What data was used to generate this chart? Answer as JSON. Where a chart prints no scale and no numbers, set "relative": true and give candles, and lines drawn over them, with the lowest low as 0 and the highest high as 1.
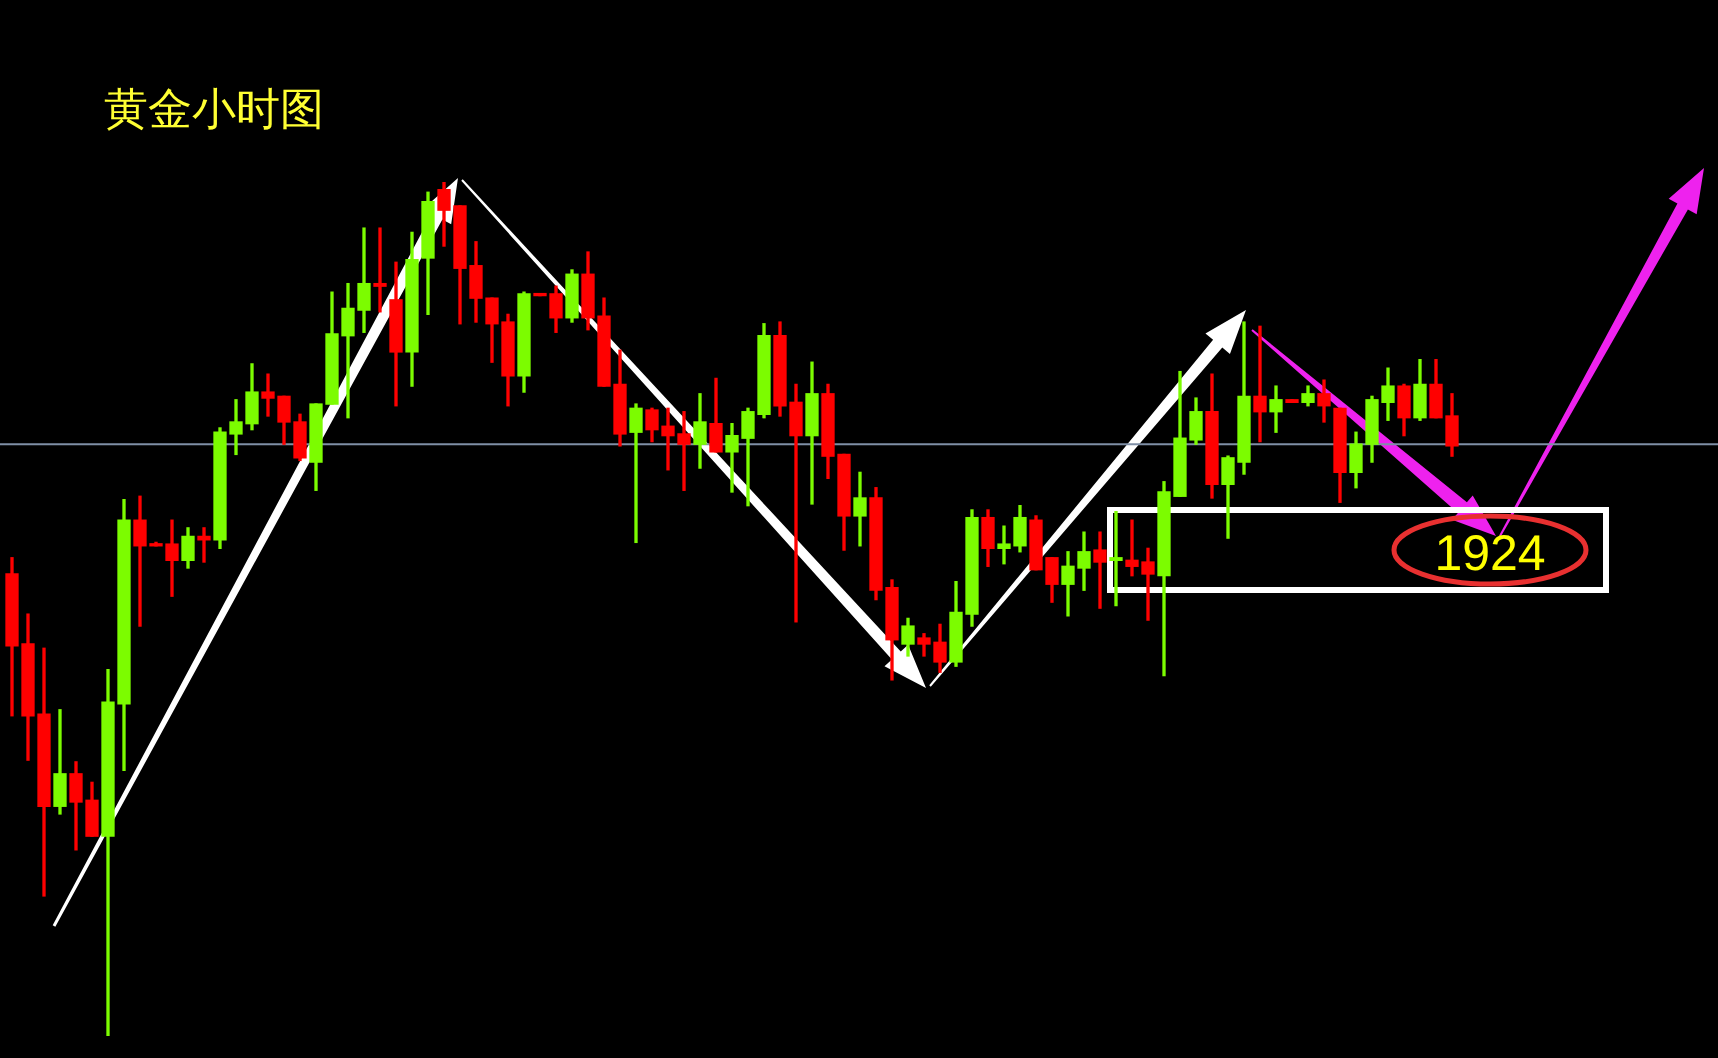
{
  "chart_data": {
    "type": "candlestick",
    "title": "黄金小时图",
    "relative": true,
    "categories": [
      null,
      null,
      null,
      null,
      null,
      null,
      null,
      null,
      null,
      null,
      null,
      null,
      null,
      null,
      null,
      null,
      null,
      null,
      null,
      null,
      null,
      null,
      null,
      null,
      null,
      null,
      null,
      null,
      null,
      null,
      null,
      null,
      null,
      null,
      null,
      null,
      null,
      null,
      null,
      null,
      null,
      null,
      null,
      null,
      null,
      null,
      null,
      null,
      null,
      null,
      null,
      null,
      null,
      null,
      null,
      null,
      null,
      null,
      null,
      null,
      null,
      null,
      null,
      null,
      null,
      null,
      null,
      null,
      null,
      null,
      null,
      null,
      null,
      null,
      null,
      null,
      null,
      null,
      null,
      null,
      null,
      null,
      null,
      null,
      null,
      null,
      null,
      null,
      null,
      null,
      null
    ],
    "ohlc": [
      [
        0.541,
        0.56,
        0.375,
        0.457
      ],
      [
        0.459,
        0.494,
        0.323,
        0.375
      ],
      [
        0.377,
        0.454,
        0.164,
        0.269
      ],
      [
        0.269,
        0.382,
        0.26,
        0.307
      ],
      [
        0.307,
        0.321,
        0.218,
        0.274
      ],
      [
        0.276,
        0.297,
        0.234,
        0.234
      ],
      [
        0.234,
        0.429,
        0,
        0.391
      ],
      [
        0.389,
        0.628,
        0.311,
        0.604
      ],
      [
        0.604,
        0.632,
        0.48,
        0.574
      ],
      [
        0.576,
        0.578,
        0.574,
        0.574
      ],
      [
        0.576,
        0.604,
        0.515,
        0.557
      ],
      [
        0.557,
        0.595,
        0.548,
        0.585
      ],
      [
        0.585,
        0.595,
        0.555,
        0.581
      ],
      [
        0.581,
        0.712,
        0.571,
        0.707
      ],
      [
        0.705,
        0.745,
        0.681,
        0.719
      ],
      [
        0.717,
        0.787,
        0.71,
        0.754
      ],
      [
        0.754,
        0.775,
        0.726,
        0.747
      ],
      [
        0.749,
        0.749,
        0.693,
        0.719
      ],
      [
        0.719,
        0.728,
        0.674,
        0.677
      ],
      [
        0.672,
        0.74,
        0.639,
        0.74
      ],
      [
        0.74,
        0.871,
        0.74,
        0.822
      ],
      [
        0.82,
        0.881,
        0.724,
        0.852
      ],
      [
        0.85,
        0.946,
        0.824,
        0.881
      ],
      [
        0.881,
        0.946,
        0.848,
        0.878
      ],
      [
        0.862,
        0.906,
        0.738,
        0.801
      ],
      [
        0.801,
        0.941,
        0.761,
        0.909
      ],
      [
        0.911,
        0.988,
        0.845,
        0.977
      ],
      [
        0.991,
        1,
        0.925,
        0.967
      ],
      [
        0.972,
        0.972,
        0.834,
        0.899
      ],
      [
        0.902,
        0.93,
        0.836,
        0.864
      ],
      [
        0.864,
        0.864,
        0.789,
        0.834
      ],
      [
        0.836,
        0.845,
        0.738,
        0.773
      ],
      [
        0.773,
        0.871,
        0.754,
        0.869
      ],
      [
        0.869,
        0.869,
        0.867,
        0.867
      ],
      [
        0.869,
        0.878,
        0.824,
        0.841
      ],
      [
        0.841,
        0.897,
        0.836,
        0.892
      ],
      [
        0.892,
        0.918,
        0.827,
        0.841
      ],
      [
        0.843,
        0.864,
        0.761,
        0.761
      ],
      [
        0.763,
        0.803,
        0.691,
        0.705
      ],
      [
        0.707,
        0.74,
        0.578,
        0.735
      ],
      [
        0.733,
        0.735,
        0.696,
        0.71
      ],
      [
        0.714,
        0.735,
        0.663,
        0.703
      ],
      [
        0.705,
        0.731,
        0.639,
        0.693
      ],
      [
        0.693,
        0.752,
        0.665,
        0.719
      ],
      [
        0.717,
        0.77,
        0.684,
        0.684
      ],
      [
        0.684,
        0.717,
        0.637,
        0.703
      ],
      [
        0.7,
        0.735,
        0.621,
        0.731
      ],
      [
        0.728,
        0.834,
        0.724,
        0.82
      ],
      [
        0.82,
        0.836,
        0.726,
        0.738
      ],
      [
        0.742,
        0.763,
        0.485,
        0.703
      ],
      [
        0.703,
        0.789,
        0.623,
        0.752
      ],
      [
        0.752,
        0.763,
        0.653,
        0.679
      ],
      [
        0.681,
        0.681,
        0.569,
        0.609
      ],
      [
        0.609,
        0.66,
        0.574,
        0.63
      ],
      [
        0.63,
        0.642,
        0.511,
        0.522
      ],
      [
        0.525,
        0.534,
        0.417,
        0.464
      ],
      [
        0.459,
        0.489,
        0.445,
        0.48
      ],
      [
        0.466,
        0.471,
        0.445,
        0.459
      ],
      [
        0.461,
        0.482,
        0.426,
        0.438
      ],
      [
        0.438,
        0.532,
        0.433,
        0.496
      ],
      [
        0.494,
        0.616,
        0.48,
        0.607
      ],
      [
        0.607,
        0.616,
        0.55,
        0.571
      ],
      [
        0.571,
        0.597,
        0.553,
        0.576
      ],
      [
        0.574,
        0.621,
        0.567,
        0.607
      ],
      [
        0.604,
        0.609,
        0.546,
        0.546
      ],
      [
        0.56,
        0.56,
        0.508,
        0.529
      ],
      [
        0.529,
        0.567,
        0.492,
        0.55
      ],
      [
        0.548,
        0.59,
        0.522,
        0.567
      ],
      [
        0.569,
        0.59,
        0.501,
        0.555
      ],
      [
        0.557,
        0.614,
        0.504,
        0.56
      ],
      [
        0.557,
        0.604,
        0.539,
        0.55
      ],
      [
        0.555,
        0.571,
        0.487,
        0.541
      ],
      [
        0.539,
        0.649,
        0.422,
        0.637
      ],
      [
        0.632,
        0.778,
        0.632,
        0.7
      ],
      [
        0.698,
        0.747,
        0.693,
        0.731
      ],
      [
        0.731,
        0.775,
        0.63,
        0.646
      ],
      [
        0.646,
        0.679,
        0.583,
        0.677
      ],
      [
        0.672,
        0.836,
        0.658,
        0.749
      ],
      [
        0.749,
        0.831,
        0.696,
        0.731
      ],
      [
        0.731,
        0.761,
        0.707,
        0.745
      ],
      [
        0.745,
        0.745,
        0.742,
        0.742
      ],
      [
        0.742,
        0.761,
        0.738,
        0.752
      ],
      [
        0.752,
        0.768,
        0.719,
        0.738
      ],
      [
        0.735,
        0.735,
        0.625,
        0.66
      ],
      [
        0.66,
        0.707,
        0.642,
        0.693
      ],
      [
        0.693,
        0.749,
        0.672,
        0.745
      ],
      [
        0.742,
        0.782,
        0.721,
        0.761
      ],
      [
        0.761,
        0.763,
        0.703,
        0.724
      ],
      [
        0.724,
        0.792,
        0.721,
        0.763
      ],
      [
        0.763,
        0.792,
        0.724,
        0.724
      ],
      [
        0.726,
        0.752,
        0.679,
        0.691
      ]
    ],
    "colors": [
      "#ff0000",
      "#ff0000",
      "#ff0000",
      "#7cfc00",
      "#ff0000",
      "#ff0000",
      "#7cfc00",
      "#7cfc00",
      "#ff0000",
      "#ff0000",
      "#ff0000",
      "#7cfc00",
      "#ff0000",
      "#7cfc00",
      "#7cfc00",
      "#7cfc00",
      "#ff0000",
      "#ff0000",
      "#ff0000",
      "#7cfc00",
      "#7cfc00",
      "#7cfc00",
      "#7cfc00",
      "#ff0000",
      "#ff0000",
      "#7cfc00",
      "#7cfc00",
      "#ff0000",
      "#ff0000",
      "#ff0000",
      "#ff0000",
      "#ff0000",
      "#7cfc00",
      "#ff0000",
      "#ff0000",
      "#7cfc00",
      "#ff0000",
      "#ff0000",
      "#ff0000",
      "#7cfc00",
      "#ff0000",
      "#ff0000",
      "#ff0000",
      "#7cfc00",
      "#ff0000",
      "#7cfc00",
      "#7cfc00",
      "#7cfc00",
      "#ff0000",
      "#ff0000",
      "#7cfc00",
      "#ff0000",
      "#ff0000",
      "#7cfc00",
      "#ff0000",
      "#ff0000",
      "#7cfc00",
      "#ff0000",
      "#ff0000",
      "#7cfc00",
      "#7cfc00",
      "#ff0000",
      "#7cfc00",
      "#7cfc00",
      "#ff0000",
      "#ff0000",
      "#7cfc00",
      "#7cfc00",
      "#ff0000",
      "#7cfc00",
      "#ff0000",
      "#ff0000",
      "#7cfc00",
      "#7cfc00",
      "#7cfc00",
      "#ff0000",
      "#7cfc00",
      "#7cfc00",
      "#ff0000",
      "#7cfc00",
      "#ff0000",
      "#7cfc00",
      "#ff0000",
      "#ff0000",
      "#7cfc00",
      "#7cfc00",
      "#7cfc00",
      "#ff0000",
      "#7cfc00",
      "#ff0000",
      "#ff0000"
    ],
    "ref_lines": [
      {
        "axis": "y",
        "value": 0.693,
        "color": "#7f8fa6"
      }
    ],
    "annotations": [
      "1924"
    ]
  }
}
